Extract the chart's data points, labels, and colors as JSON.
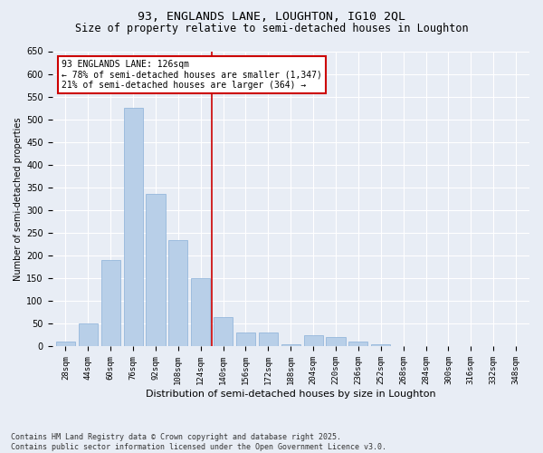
{
  "title1": "93, ENGLANDS LANE, LOUGHTON, IG10 2QL",
  "title2": "Size of property relative to semi-detached houses in Loughton",
  "xlabel": "Distribution of semi-detached houses by size in Loughton",
  "ylabel": "Number of semi-detached properties",
  "categories": [
    "28sqm",
    "44sqm",
    "60sqm",
    "76sqm",
    "92sqm",
    "108sqm",
    "124sqm",
    "140sqm",
    "156sqm",
    "172sqm",
    "188sqm",
    "204sqm",
    "220sqm",
    "236sqm",
    "252sqm",
    "268sqm",
    "284sqm",
    "300sqm",
    "316sqm",
    "332sqm",
    "348sqm"
  ],
  "values": [
    10,
    50,
    190,
    525,
    335,
    235,
    150,
    65,
    30,
    30,
    5,
    25,
    20,
    10,
    5,
    1,
    1,
    1,
    0,
    0,
    0
  ],
  "bar_color": "#b8cfe8",
  "bar_edge_color": "#8ab0d8",
  "property_line_color": "#cc0000",
  "annotation_text": "93 ENGLANDS LANE: 126sqm\n← 78% of semi-detached houses are smaller (1,347)\n21% of semi-detached houses are larger (364) →",
  "annotation_box_color": "#ffffff",
  "annotation_border_color": "#cc0000",
  "ylim": [
    0,
    650
  ],
  "yticks": [
    0,
    50,
    100,
    150,
    200,
    250,
    300,
    350,
    400,
    450,
    500,
    550,
    600,
    650
  ],
  "background_color": "#e8edf5",
  "grid_color": "#ffffff",
  "footer1": "Contains HM Land Registry data © Crown copyright and database right 2025.",
  "footer2": "Contains public sector information licensed under the Open Government Licence v3.0.",
  "title_fontsize": 9.5,
  "subtitle_fontsize": 8.5,
  "bar_width": 0.85,
  "line_x_index": 6.5
}
